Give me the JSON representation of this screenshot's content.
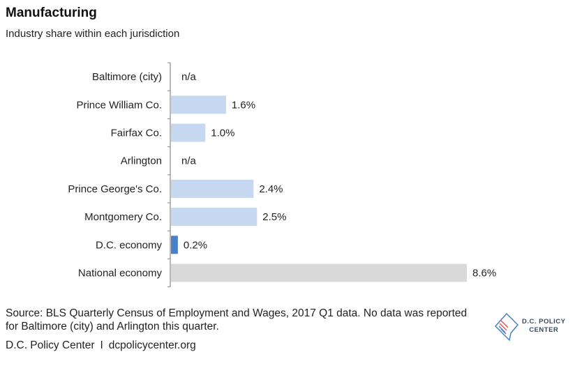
{
  "title": "Manufacturing",
  "subtitle": "Industry share within each jurisdiction",
  "source": "Source: BLS Quarterly Census of Employment and Wages, 2017 Q1 data. No data was reported for Baltimore (city) and Arlington this quarter.",
  "credit": {
    "org": "D.C. Policy Center",
    "separator": "I",
    "url": "dcpolicycenter.org"
  },
  "logo": {
    "line1": "D.C. POLICY",
    "line2": "CENTER"
  },
  "chart_data": {
    "type": "bar",
    "orientation": "horizontal",
    "categories": [
      "Baltimore (city)",
      "Prince William Co.",
      "Fairfax Co.",
      "Arlington",
      "Prince George's Co.",
      "Montgomery Co.",
      "D.C. economy",
      "National economy"
    ],
    "values": [
      null,
      1.6,
      1.0,
      null,
      2.4,
      2.5,
      0.2,
      8.6
    ],
    "data_labels": [
      "n/a",
      "1.6%",
      "1.0%",
      "n/a",
      "2.4%",
      "2.5%",
      "0.2%",
      "8.6%"
    ],
    "bar_colors": [
      "#c5d8f0",
      "#c5d8f0",
      "#c5d8f0",
      "#c5d8f0",
      "#c5d8f0",
      "#c5d8f0",
      "#4a80c8",
      "#d9d9d9"
    ],
    "xlim": [
      0,
      8.6
    ],
    "grid": false,
    "legend": "none"
  }
}
